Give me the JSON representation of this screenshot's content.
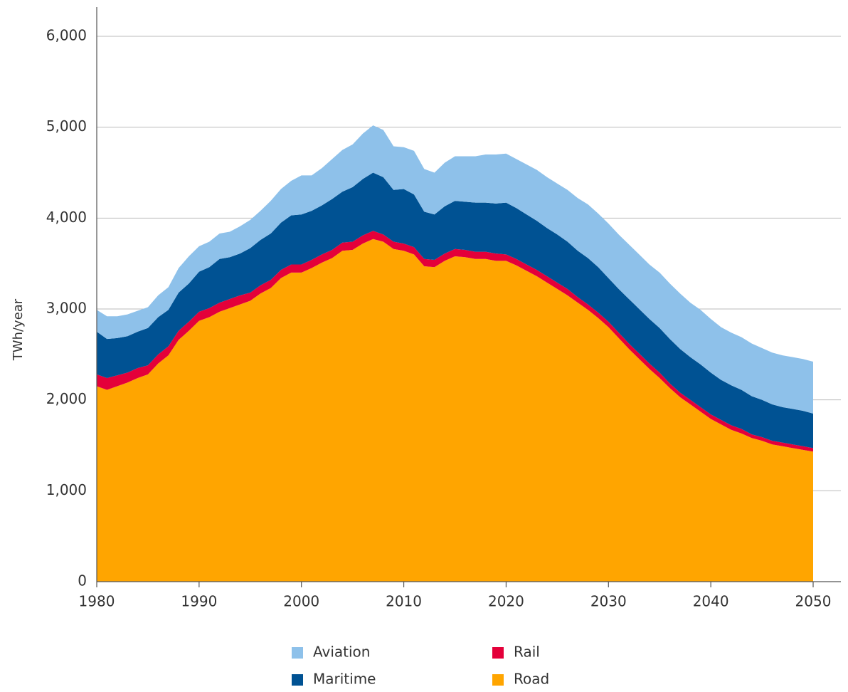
{
  "chart_data": {
    "type": "stacked_area",
    "ylabel": "TWh/year",
    "x": [
      1980,
      1981,
      1982,
      1983,
      1984,
      1985,
      1986,
      1987,
      1988,
      1989,
      1990,
      1991,
      1992,
      1993,
      1994,
      1995,
      1996,
      1997,
      1998,
      1999,
      2000,
      2001,
      2002,
      2003,
      2004,
      2005,
      2006,
      2007,
      2008,
      2009,
      2010,
      2011,
      2012,
      2013,
      2014,
      2015,
      2016,
      2017,
      2018,
      2019,
      2020,
      2021,
      2022,
      2023,
      2024,
      2025,
      2026,
      2027,
      2028,
      2029,
      2030,
      2031,
      2032,
      2033,
      2034,
      2035,
      2036,
      2037,
      2038,
      2039,
      2040,
      2041,
      2042,
      2043,
      2044,
      2045,
      2046,
      2047,
      2048,
      2049,
      2050
    ],
    "series": [
      {
        "name": "Road",
        "color": "#ffa500",
        "values": [
          2150,
          2110,
          2150,
          2190,
          2240,
          2280,
          2400,
          2490,
          2660,
          2760,
          2870,
          2910,
          2970,
          3010,
          3050,
          3090,
          3170,
          3230,
          3340,
          3400,
          3400,
          3450,
          3510,
          3560,
          3640,
          3650,
          3720,
          3770,
          3740,
          3660,
          3640,
          3600,
          3470,
          3460,
          3530,
          3580,
          3570,
          3550,
          3550,
          3530,
          3530,
          3480,
          3420,
          3360,
          3290,
          3220,
          3150,
          3070,
          2990,
          2900,
          2800,
          2680,
          2560,
          2450,
          2340,
          2240,
          2130,
          2030,
          1950,
          1870,
          1790,
          1730,
          1670,
          1630,
          1580,
          1550,
          1510,
          1490,
          1470,
          1450,
          1430
        ]
      },
      {
        "name": "Rail",
        "color": "#e4003a",
        "values": [
          130,
          130,
          120,
          110,
          110,
          100,
          100,
          100,
          100,
          100,
          100,
          100,
          100,
          100,
          100,
          90,
          90,
          90,
          90,
          90,
          90,
          90,
          90,
          90,
          90,
          90,
          90,
          90,
          80,
          80,
          80,
          80,
          80,
          80,
          80,
          80,
          80,
          80,
          80,
          80,
          70,
          70,
          70,
          70,
          70,
          70,
          70,
          60,
          60,
          60,
          60,
          60,
          60,
          60,
          60,
          60,
          50,
          50,
          50,
          50,
          50,
          50,
          50,
          50,
          40,
          40,
          40,
          40,
          40,
          40,
          40
        ]
      },
      {
        "name": "Maritime",
        "color": "#005293",
        "values": [
          470,
          430,
          410,
          400,
          400,
          410,
          410,
          400,
          420,
          420,
          440,
          450,
          480,
          460,
          460,
          490,
          500,
          510,
          520,
          540,
          550,
          540,
          540,
          560,
          560,
          600,
          620,
          640,
          630,
          570,
          600,
          580,
          520,
          500,
          520,
          530,
          530,
          540,
          540,
          550,
          570,
          560,
          550,
          540,
          530,
          530,
          520,
          510,
          510,
          500,
          480,
          480,
          490,
          490,
          490,
          490,
          490,
          480,
          470,
          470,
          460,
          440,
          440,
          430,
          420,
          410,
          400,
          390,
          390,
          390,
          380
        ]
      },
      {
        "name": "Aviation",
        "color": "#8ec1ea",
        "values": [
          240,
          250,
          240,
          240,
          230,
          230,
          240,
          250,
          270,
          300,
          280,
          280,
          280,
          280,
          300,
          310,
          320,
          360,
          370,
          380,
          430,
          390,
          410,
          440,
          460,
          470,
          500,
          520,
          520,
          480,
          460,
          480,
          470,
          460,
          480,
          490,
          500,
          510,
          530,
          540,
          540,
          540,
          550,
          560,
          560,
          560,
          570,
          580,
          590,
          590,
          600,
          600,
          600,
          600,
          600,
          610,
          610,
          610,
          600,
          600,
          590,
          580,
          580,
          580,
          580,
          570,
          570,
          570,
          570,
          570,
          570
        ]
      }
    ],
    "xlim": [
      1980,
      2050
    ],
    "xticks": [
      1980,
      1990,
      2000,
      2010,
      2020,
      2030,
      2040,
      2050
    ],
    "ylim": [
      0,
      6000
    ],
    "yticks": [
      0,
      {
        "value": 1000,
        "label": "1,000"
      },
      {
        "value": 2000,
        "label": "2,000"
      },
      {
        "value": 3000,
        "label": "3,000"
      },
      {
        "value": 4000,
        "label": "4,000"
      },
      {
        "value": 5000,
        "label": "5,000"
      },
      {
        "value": 6000,
        "label": "6,000"
      }
    ],
    "grid": true
  }
}
